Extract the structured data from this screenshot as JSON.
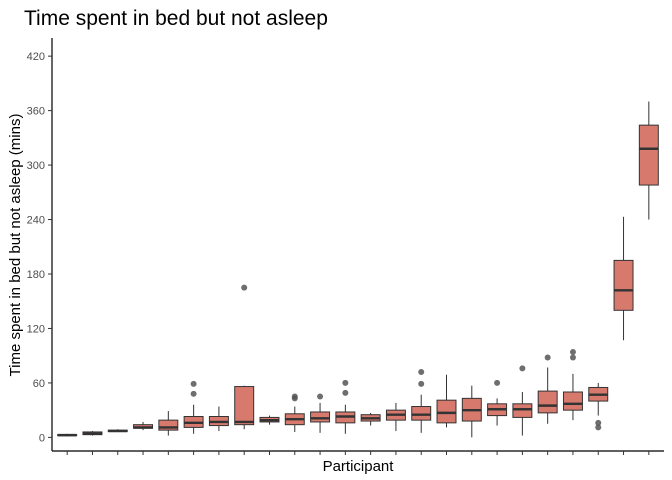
{
  "chart_data": {
    "type": "boxplot",
    "title": "Time spent in bed but not asleep",
    "xlabel": "Participant",
    "ylabel": "Time spent in bed but not asleep (mins)",
    "ylim": [
      -15,
      440
    ],
    "yticks": [
      0,
      60,
      120,
      180,
      240,
      300,
      360,
      420
    ],
    "grid": false,
    "legend": "none",
    "colors": {
      "fill": "#d8796e",
      "stroke": "#333333",
      "outlier": "#555555"
    },
    "boxes": [
      {
        "lower": 1,
        "q1": 2,
        "median": 2.5,
        "q3": 3,
        "upper": 4,
        "outliers": []
      },
      {
        "lower": 2,
        "q1": 3,
        "median": 4,
        "q3": 6,
        "upper": 7,
        "outliers": []
      },
      {
        "lower": 6,
        "q1": 6.5,
        "median": 7,
        "q3": 8,
        "upper": 9,
        "outliers": []
      },
      {
        "lower": 8,
        "q1": 10,
        "median": 11,
        "q3": 14,
        "upper": 17,
        "outliers": []
      },
      {
        "lower": 2,
        "q1": 8,
        "median": 11,
        "q3": 19,
        "upper": 29,
        "outliers": []
      },
      {
        "lower": 4,
        "q1": 11,
        "median": 16,
        "q3": 23,
        "upper": 36,
        "outliers": [
          48,
          59
        ]
      },
      {
        "lower": 7,
        "q1": 13,
        "median": 17,
        "q3": 23,
        "upper": 34,
        "outliers": []
      },
      {
        "lower": 9,
        "q1": 14,
        "median": 17,
        "q3": 56,
        "upper": 57,
        "outliers": [
          165
        ]
      },
      {
        "lower": 14,
        "q1": 17,
        "median": 19,
        "q3": 22,
        "upper": 24,
        "outliers": []
      },
      {
        "lower": 6,
        "q1": 14,
        "median": 20,
        "q3": 26,
        "upper": 34,
        "outliers": [
          43,
          45
        ]
      },
      {
        "lower": 5,
        "q1": 17,
        "median": 21,
        "q3": 28,
        "upper": 38,
        "outliers": [
          45
        ]
      },
      {
        "lower": 4,
        "q1": 16,
        "median": 23,
        "q3": 28,
        "upper": 36,
        "outliers": [
          49,
          60
        ]
      },
      {
        "lower": 13,
        "q1": 18,
        "median": 21,
        "q3": 25,
        "upper": 27,
        "outliers": []
      },
      {
        "lower": 7,
        "q1": 19,
        "median": 25,
        "q3": 30,
        "upper": 38,
        "outliers": []
      },
      {
        "lower": 5,
        "q1": 19,
        "median": 25,
        "q3": 34,
        "upper": 47,
        "outliers": [
          59,
          72
        ]
      },
      {
        "lower": 11,
        "q1": 16,
        "median": 27,
        "q3": 41,
        "upper": 69,
        "outliers": []
      },
      {
        "lower": 0,
        "q1": 18,
        "median": 30,
        "q3": 43,
        "upper": 57,
        "outliers": []
      },
      {
        "lower": 13,
        "q1": 24,
        "median": 31,
        "q3": 37,
        "upper": 43,
        "outliers": [
          60
        ]
      },
      {
        "lower": 2,
        "q1": 22,
        "median": 31,
        "q3": 37,
        "upper": 50,
        "outliers": [
          76
        ]
      },
      {
        "lower": 15,
        "q1": 27,
        "median": 35,
        "q3": 51,
        "upper": 77,
        "outliers": [
          88
        ]
      },
      {
        "lower": 19,
        "q1": 30,
        "median": 37,
        "q3": 50,
        "upper": 70,
        "outliers": [
          88,
          94
        ]
      },
      {
        "lower": 24,
        "q1": 40,
        "median": 47,
        "q3": 55,
        "upper": 60,
        "outliers": [
          11,
          16
        ]
      },
      {
        "lower": 107,
        "q1": 140,
        "median": 162,
        "q3": 195,
        "upper": 243,
        "outliers": []
      },
      {
        "lower": 240,
        "q1": 278,
        "median": 318,
        "q3": 344,
        "upper": 370,
        "outliers": []
      }
    ]
  }
}
